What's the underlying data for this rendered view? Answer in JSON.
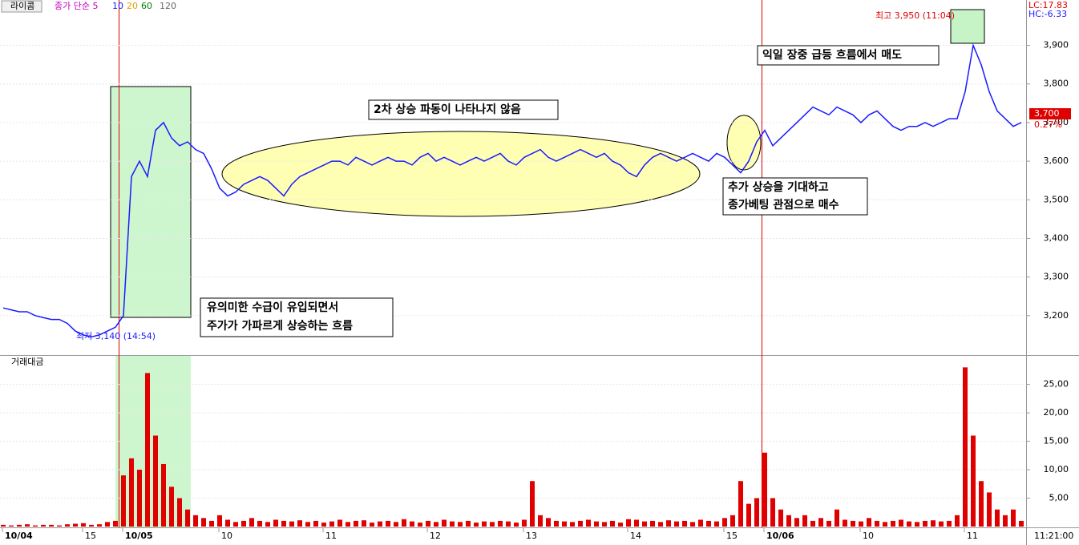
{
  "header": {
    "symbol": "라이콤",
    "ma_legend": "종가 단순 5",
    "ma_10": "10",
    "ma_20": "20",
    "ma_60": "60",
    "ma_120": "120",
    "lc": "LC:17.83",
    "hc": "HC:-6.33",
    "last_price": "3,700",
    "last_change": "0.27%",
    "volume_title": "거래대금",
    "time": "11:21:00"
  },
  "annotations": {
    "surge_1": "유의미한 수급이 유입되면서",
    "surge_2": "주가가 가파르게 상승하는 흐름",
    "no_second_wave": "2차 상승 파동이 나타나지 않음",
    "buy_1": "추가 상승을 기대하고",
    "buy_2": "종가베팅 관점으로 매수",
    "sell": "익일 장중 급등 흐름에서 매도",
    "high": "최고 3,950 (11:04)",
    "low": "최저 3,140 (14:54)"
  },
  "chart_data": [
    {
      "type": "line",
      "color": "#1a1aff",
      "categories": [
        "10/04",
        null,
        null,
        null,
        null,
        null,
        null,
        null,
        null,
        null,
        "15",
        null,
        null,
        null,
        null,
        "10/05",
        null,
        null,
        null,
        null,
        null,
        null,
        null,
        null,
        null,
        null,
        null,
        "10",
        null,
        null,
        null,
        null,
        null,
        null,
        null,
        null,
        null,
        null,
        null,
        null,
        "11",
        null,
        null,
        null,
        null,
        null,
        null,
        null,
        null,
        null,
        null,
        null,
        null,
        "12",
        null,
        null,
        null,
        null,
        null,
        null,
        null,
        null,
        null,
        null,
        null,
        "13",
        null,
        null,
        null,
        null,
        null,
        null,
        null,
        null,
        null,
        null,
        null,
        null,
        "14",
        null,
        null,
        null,
        null,
        null,
        null,
        null,
        null,
        null,
        null,
        null,
        "15",
        null,
        null,
        null,
        null,
        "10/06",
        null,
        null,
        null,
        null,
        null,
        null,
        null,
        null,
        null,
        null,
        null,
        "10",
        null,
        null,
        null,
        null,
        null,
        null,
        null,
        null,
        null,
        null,
        null,
        null,
        "11",
        null,
        null,
        null,
        null,
        null,
        null,
        null
      ],
      "values": [
        3220,
        3215,
        3210,
        3210,
        3200,
        3195,
        3190,
        3190,
        3180,
        3160,
        3150,
        3145,
        3150,
        3160,
        3170,
        3200,
        3560,
        3600,
        3560,
        3680,
        3700,
        3660,
        3640,
        3650,
        3630,
        3620,
        3580,
        3530,
        3510,
        3520,
        3540,
        3550,
        3560,
        3550,
        3530,
        3510,
        3540,
        3560,
        3570,
        3580,
        3590,
        3600,
        3600,
        3590,
        3610,
        3600,
        3590,
        3600,
        3610,
        3600,
        3600,
        3590,
        3610,
        3620,
        3600,
        3610,
        3600,
        3590,
        3600,
        3610,
        3600,
        3610,
        3620,
        3600,
        3590,
        3610,
        3620,
        3630,
        3610,
        3600,
        3610,
        3620,
        3630,
        3620,
        3610,
        3620,
        3600,
        3590,
        3570,
        3560,
        3590,
        3610,
        3620,
        3610,
        3600,
        3610,
        3620,
        3610,
        3600,
        3620,
        3610,
        3590,
        3570,
        3600,
        3650,
        3680,
        3640,
        3660,
        3680,
        3700,
        3720,
        3740,
        3730,
        3720,
        3740,
        3730,
        3720,
        3700,
        3720,
        3730,
        3710,
        3690,
        3680,
        3690,
        3690,
        3700,
        3690,
        3700,
        3710,
        3710,
        3780,
        3900,
        3850,
        3780,
        3730,
        3710,
        3690,
        3700
      ],
      "ylim": [
        3100,
        3980
      ],
      "yticks": [
        {
          "value": 3200,
          "label": "3,200"
        },
        {
          "value": 3300,
          "label": "3,300"
        },
        {
          "value": 3400,
          "label": "3,400"
        },
        {
          "value": 3500,
          "label": "3,500"
        },
        {
          "value": 3600,
          "label": "3,600"
        },
        {
          "value": 3700,
          "label": "3,700"
        },
        {
          "value": 3800,
          "label": "3,800"
        },
        {
          "value": 3900,
          "label": "3,900"
        }
      ]
    },
    {
      "type": "bar",
      "color": "#e00000",
      "values": [
        0.3,
        0.2,
        0.3,
        0.4,
        0.2,
        0.3,
        0.3,
        0.2,
        0.4,
        0.5,
        0.6,
        0.3,
        0.4,
        0.8,
        1.0,
        9,
        12,
        10,
        27,
        16,
        11,
        7,
        5,
        3,
        2,
        1.5,
        1,
        2,
        1.2,
        0.8,
        1,
        1.5,
        1,
        0.8,
        1.2,
        1,
        0.9,
        1.1,
        0.8,
        1,
        0.7,
        0.9,
        1.2,
        0.8,
        1,
        1.1,
        0.7,
        0.9,
        1,
        0.8,
        1.3,
        0.9,
        0.7,
        1,
        0.8,
        1.2,
        0.9,
        0.8,
        1,
        0.7,
        0.9,
        0.8,
        1,
        0.9,
        0.7,
        1.2,
        8,
        2,
        1.5,
        1,
        0.9,
        0.8,
        1,
        1.2,
        0.9,
        0.8,
        1,
        0.7,
        1.3,
        1.2,
        0.9,
        1,
        0.8,
        1.1,
        0.9,
        1,
        0.8,
        1.2,
        1,
        0.9,
        1.5,
        2,
        8,
        4,
        5,
        13,
        5,
        3,
        2,
        1.5,
        2,
        1,
        1.5,
        1,
        3,
        1.2,
        1,
        0.9,
        1.5,
        1,
        0.8,
        1,
        1.2,
        0.9,
        0.8,
        1,
        1.1,
        0.9,
        1,
        2,
        28,
        16,
        8,
        6,
        3,
        2,
        3,
        1
      ],
      "ylim": [
        0,
        29.6
      ],
      "yticks": [
        {
          "value": 5,
          "label": "5,00"
        },
        {
          "value": 10,
          "label": "10,00"
        },
        {
          "value": 15,
          "label": "15,00"
        },
        {
          "value": 20,
          "label": "20,00"
        },
        {
          "value": 25,
          "label": "25,00"
        }
      ]
    }
  ]
}
